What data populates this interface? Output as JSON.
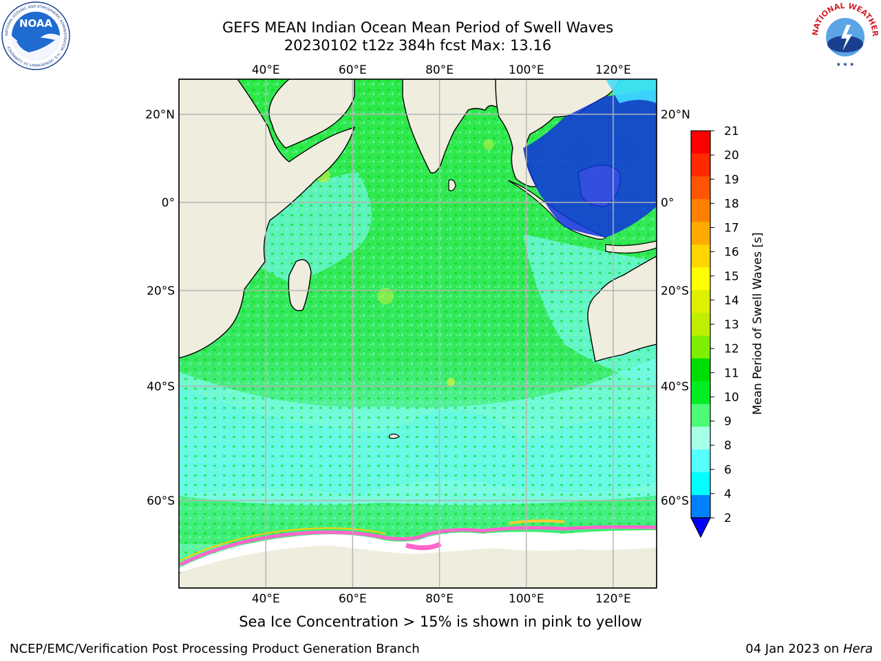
{
  "header": {
    "title_line1": "GEFS MEAN Indian Ocean Mean Period of Swell Waves",
    "title_line2": "20230102 t12z 384h fcst   Max: 13.16"
  },
  "logos": {
    "left": "noaa-logo",
    "left_text": "NOAA",
    "left_ring_text": "NATIONAL OCEANIC AND ATMOSPHERIC ADMINISTRATION · U.S. DEPARTMENT OF COMMERCE",
    "right": "national-weather-service-logo",
    "right_ring_text": "NATIONAL WEATHER SERVICE"
  },
  "map": {
    "lon_ticks": [
      "40°E",
      "60°E",
      "80°E",
      "100°E",
      "120°E"
    ],
    "lon_values": [
      40,
      60,
      80,
      100,
      120
    ],
    "lat_ticks": [
      "20°N",
      "0°",
      "20°S",
      "40°S",
      "60°S"
    ],
    "lat_values": [
      20,
      0,
      -20,
      -40,
      -60
    ],
    "lon_range": [
      20,
      130
    ],
    "lat_range": [
      -72,
      28
    ],
    "land_color": "#efedde",
    "grid_color": "#b4b4b4"
  },
  "colorbar": {
    "label": "Mean Period of Swell Waves [s]",
    "ticks": [
      "21",
      "20",
      "19",
      "18",
      "17",
      "16",
      "15",
      "14",
      "13",
      "12",
      "11",
      "10",
      "9",
      "8",
      "6",
      "4",
      "2"
    ],
    "colors": [
      "#ff0000",
      "#ff2a00",
      "#ff5500",
      "#ff8000",
      "#ffaa00",
      "#ffd500",
      "#ffff00",
      "#ddf000",
      "#c0ee00",
      "#80ee00",
      "#00dd00",
      "#00ee22",
      "#4efb78",
      "#a8ffe8",
      "#55ffff",
      "#00ffff",
      "#0080ff"
    ],
    "below_color": "#0000ff"
  },
  "footer": {
    "note": "Sea Ice Concentration > 15% is shown in pink to yellow",
    "credit": "NCEP/EMC/Verification Post Processing Product Generation Branch",
    "date": "04 Jan 2023 on ",
    "machine": "Hera"
  }
}
